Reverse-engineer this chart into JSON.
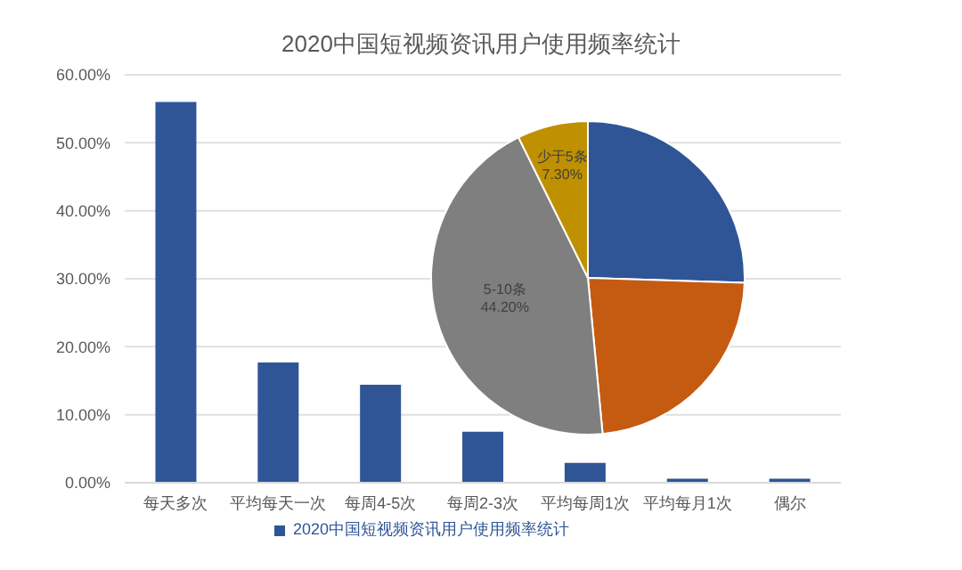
{
  "chart_data": [
    {
      "type": "bar",
      "title": "2020中国短视频资讯用户使用频率统计",
      "categories": [
        "每天多次",
        "平均每天一次",
        "每周4-5次",
        "每周2-3次",
        "平均每周1次",
        "平均每月1次",
        "偶尔"
      ],
      "series": [
        {
          "name": "2020中国短视频资讯用户使用频率统计",
          "color": "#2f5597",
          "values": [
            56,
            17.7,
            14.4,
            7.5,
            2.9,
            0.6,
            0.6
          ]
        }
      ],
      "ylim": [
        0,
        60
      ],
      "yticks": [
        {
          "value": 0,
          "label": "0.00%"
        },
        {
          "value": 10,
          "label": "10.00%"
        },
        {
          "value": 20,
          "label": "20.00%"
        },
        {
          "value": 30,
          "label": "30.00%"
        },
        {
          "value": 40,
          "label": "40.00%"
        },
        {
          "value": 50,
          "label": "50.00%"
        },
        {
          "value": 60,
          "label": "60.00%"
        }
      ],
      "grid": "y",
      "legend": "bottom"
    },
    {
      "type": "pie",
      "categories": [
        null,
        null,
        "5-10条",
        "少于5条"
      ],
      "values": [
        25.5,
        23.0,
        44.2,
        7.3
      ],
      "colors": [
        "#2f5597",
        "#c55a11",
        "#7f7f7f",
        "#bf9000"
      ],
      "value_labels": [
        null,
        null,
        "44.20%",
        "7.30%"
      ]
    }
  ]
}
